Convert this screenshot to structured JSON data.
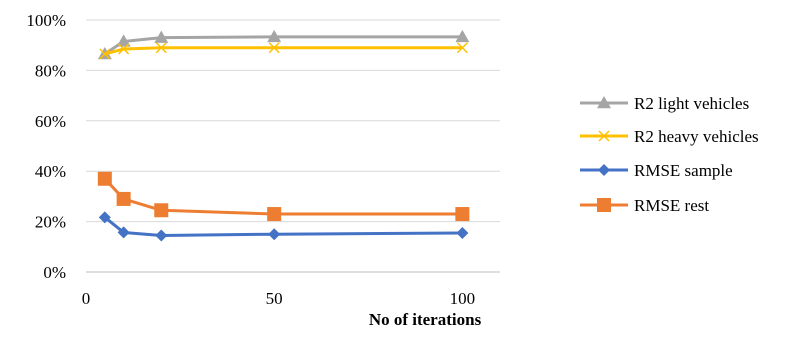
{
  "chart_data": {
    "type": "line",
    "title": "",
    "xlabel": "No of iterations",
    "ylabel": "",
    "xlim": [
      0,
      110
    ],
    "ylim": [
      0,
      100
    ],
    "x_ticks": [
      0,
      50,
      100
    ],
    "x_tick_labels": [
      "0",
      "50",
      "100"
    ],
    "y_ticks": [
      0,
      20,
      40,
      60,
      80,
      100
    ],
    "y_tick_labels": [
      "0%",
      "20%",
      "40%",
      "60%",
      "80%",
      "100%"
    ],
    "grid": "horizontal",
    "legend_position": "right",
    "series": [
      {
        "name": "R2 light vehicles",
        "color": "#a5a5a5",
        "marker": "triangle",
        "x": [
          5,
          10,
          20,
          50,
          100
        ],
        "y": [
          86.5,
          91.5,
          93,
          93.3,
          93.3
        ]
      },
      {
        "name": "R2 heavy vehicles",
        "color": "#ffc000",
        "marker": "x",
        "x": [
          5,
          10,
          20,
          50,
          100
        ],
        "y": [
          86.5,
          88.5,
          89,
          89,
          89
        ]
      },
      {
        "name": "RMSE sample",
        "color": "#4472c4",
        "marker": "diamond",
        "x": [
          5,
          10,
          20,
          50,
          100
        ],
        "y": [
          21.7,
          15.7,
          14.5,
          15,
          15.5
        ]
      },
      {
        "name": "RMSE rest",
        "color": "#ed7d31",
        "marker": "square",
        "x": [
          5,
          10,
          20,
          50,
          100
        ],
        "y": [
          37,
          29,
          24.5,
          23,
          23
        ]
      }
    ]
  }
}
